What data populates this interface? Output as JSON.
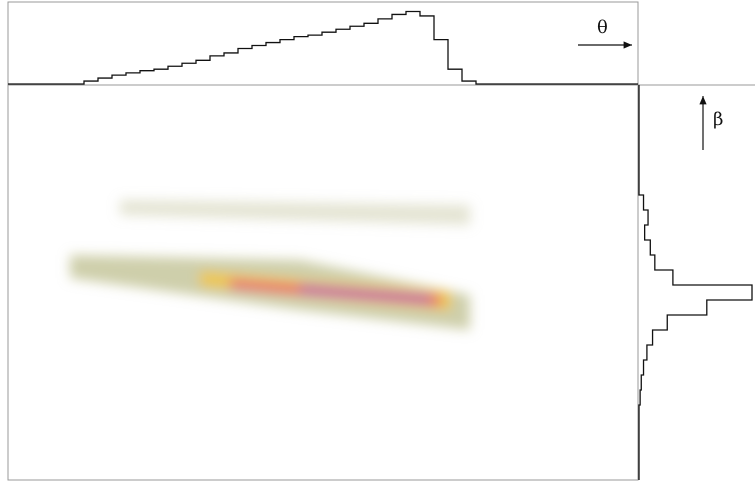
{
  "chart_data": [
    {
      "type": "step",
      "label": "θ",
      "ylim": [
        0,
        100
      ],
      "values": [
        0,
        4,
        8,
        12,
        15,
        18,
        20,
        24,
        28,
        32,
        38,
        42,
        48,
        52,
        56,
        60,
        64,
        66,
        70,
        74,
        78,
        82,
        88,
        94,
        98,
        92,
        60,
        20,
        4,
        0
      ]
    },
    {
      "type": "step",
      "label": "β",
      "ylim": [
        0,
        100
      ],
      "values": [
        0,
        0,
        0,
        0,
        0,
        0,
        0,
        4,
        8,
        5,
        10,
        14,
        30,
        100,
        60,
        25,
        12,
        7,
        4,
        2,
        1,
        0,
        0,
        0,
        0,
        0
      ]
    }
  ]
}
